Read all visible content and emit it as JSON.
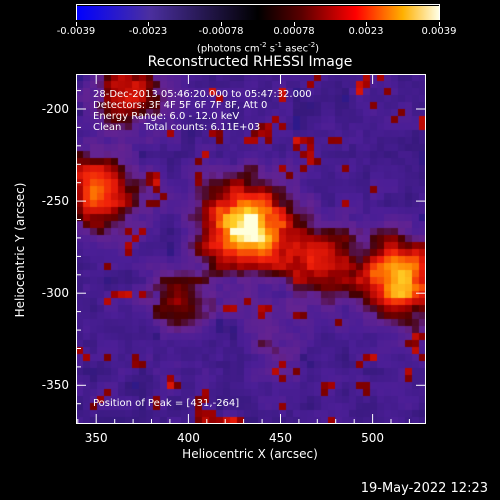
{
  "colorbar": {
    "tick_labels": [
      "-0.0039",
      "-0.0023",
      "-0.00078",
      "0.00078",
      "0.0023",
      "0.0039"
    ],
    "units": {
      "prefix": "(photons cm",
      "exp1": "-2",
      "mid": " s",
      "exp2": "-1",
      "mid2": " asec",
      "exp3": "-2",
      "suffix": ")"
    },
    "colors": [
      "#0000ff",
      "#4b2fa0",
      "#000000",
      "#5a0000",
      "#ff0000",
      "#ffb000",
      "#ffffe6"
    ]
  },
  "title": "Reconstructed RHESSI Image",
  "info": {
    "time_range": "28-Dec-2013 05:46:20.000 to 05:47:32.000",
    "detectors": "Detectors: 3F 4F 5F 6F 7F 8F, Att 0",
    "energy": "Energy Range: 6.0 - 12.0 keV",
    "clean": "Clean",
    "total_counts": "Total counts: 6.11E+03",
    "peak_position": "Position of Peak = [431,-264]"
  },
  "axes": {
    "x_ticks": [
      "350",
      "400",
      "450",
      "500"
    ],
    "y_ticks": [
      "-200",
      "-250",
      "-300",
      "-350"
    ],
    "xlabel": "Heliocentric X (arcsec)",
    "ylabel": "Heliocentric Y (arcsec)",
    "x_range": [
      339,
      529
    ],
    "y_range": [
      -371,
      -181
    ]
  },
  "footer": {
    "timestamp": "19-May-2022 12:23"
  },
  "sources": [
    {
      "x": 431,
      "y": -264,
      "peak": 1.0
    },
    {
      "x": 515,
      "y": -292,
      "peak": 0.82
    },
    {
      "x": 350,
      "y": -245,
      "peak": 0.68
    },
    {
      "x": 470,
      "y": -283,
      "peak": 0.52
    },
    {
      "x": 367,
      "y": -192,
      "peak": 0.48
    },
    {
      "x": 395,
      "y": -305,
      "peak": 0.36
    },
    {
      "x": 448,
      "y": -328,
      "peak": 0.22
    }
  ]
}
